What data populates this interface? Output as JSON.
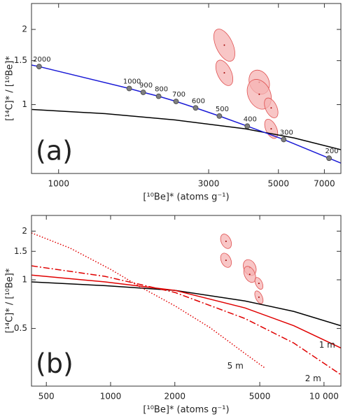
{
  "chart_data": [
    {
      "type": "line",
      "panel_label": "(a)",
      "x_label": "[¹⁰Be]* (atoms g⁻¹)",
      "y_label": "[¹⁴C]* / [¹⁰Be]*",
      "log_x": true,
      "log_y": true,
      "xlim": [
        820,
        7900
      ],
      "ylim": [
        0.53,
        2.54
      ],
      "xticks": [
        1000,
        3000,
        5000,
        7000
      ],
      "yticks": [
        1,
        1.5,
        2
      ],
      "series": [
        {
          "color": "#000000",
          "dash": "solid",
          "x": [
            823,
            1409,
            2350,
            3920,
            5610,
            7900
          ],
          "values": [
            0.956,
            0.92,
            0.868,
            0.8,
            0.735,
            0.66
          ]
        },
        {
          "color": "#1a1ad6",
          "dash": "solid",
          "x": [
            820,
            867,
            1677,
            1858,
            2080,
            2363,
            2727,
            3245,
            3981,
            5197,
            7244,
            7900
          ],
          "values": [
            1.44,
            1.42,
            1.16,
            1.12,
            1.08,
            1.03,
            0.97,
            0.9,
            0.82,
            0.725,
            0.61,
            0.583
          ]
        }
      ],
      "markers": {
        "color": "#7f7f7f",
        "labels": [
          2000,
          1000,
          900,
          800,
          700,
          600,
          500,
          400,
          300,
          200
        ],
        "x": [
          867,
          1677,
          1858,
          2080,
          2363,
          2727,
          3245,
          3981,
          5197,
          7244
        ],
        "values": [
          1.42,
          1.16,
          1.12,
          1.08,
          1.03,
          0.97,
          0.9,
          0.82,
          0.725,
          0.61
        ]
      },
      "samples": {
        "color": "#f6b3b3",
        "x": [
          3365,
          3365,
          4345,
          4345,
          4742,
          4742
        ],
        "values": [
          1.73,
          1.34,
          1.23,
          1.1,
          0.97,
          0.8
        ],
        "x_err": [
          212,
          175,
          320,
          370,
          200,
          190
        ],
        "y_err": [
          0.3,
          0.18,
          0.15,
          0.17,
          0.1,
          0.08
        ]
      }
    },
    {
      "type": "line",
      "panel_label": "(b)",
      "x_label": "[¹⁰Be]* (atoms g⁻¹)",
      "y_label": "[¹⁴C]* / [¹⁰Be]*",
      "log_x": true,
      "log_y": true,
      "xlim": [
        426,
        12000
      ],
      "ylim": [
        0.22,
        2.5
      ],
      "xticks": [
        500,
        1000,
        2000,
        5000,
        {
          "value": 10000,
          "label": "10 000"
        }
      ],
      "yticks": [
        0.5,
        1,
        1.5,
        2
      ],
      "series": [
        {
          "color": "#000000",
          "dash": "solid",
          "x": [
            426,
            942,
            2002,
            4262,
            7226,
            11990
          ],
          "values": [
            0.97,
            0.92,
            0.86,
            0.74,
            0.637,
            0.52
          ]
        },
        {
          "name": "1 m",
          "color": "#e00000",
          "dash": "solid",
          "x": [
            426,
            942,
            2002,
            4262,
            7226,
            11990
          ],
          "values": [
            1.07,
            0.97,
            0.86,
            0.67,
            0.52,
            0.379
          ]
        },
        {
          "name": "2 m",
          "color": "#e00000",
          "dash": "dashdot",
          "x": [
            426,
            942,
            2002,
            4262,
            7226,
            11990
          ],
          "values": [
            1.22,
            1.05,
            0.835,
            0.576,
            0.406,
            0.259
          ]
        },
        {
          "name": "5 m",
          "color": "#e00000",
          "dash": "dotted",
          "x": [
            426,
            646,
            1000,
            1374,
            2002,
            2924,
            4262,
            5260
          ],
          "values": [
            1.95,
            1.57,
            1.16,
            0.905,
            0.69,
            0.506,
            0.35,
            0.286
          ]
        }
      ],
      "samples": {
        "color": "#f6b3b3",
        "x": [
          3474,
          3474,
          4487,
          4487,
          4955,
          4955
        ],
        "values": [
          1.73,
          1.32,
          1.19,
          1.08,
          0.95,
          0.78
        ],
        "x_err": [
          185,
          185,
          300,
          260,
          180,
          180
        ],
        "y_err": [
          0.2,
          0.15,
          0.15,
          0.14,
          0.09,
          0.08
        ]
      }
    }
  ]
}
